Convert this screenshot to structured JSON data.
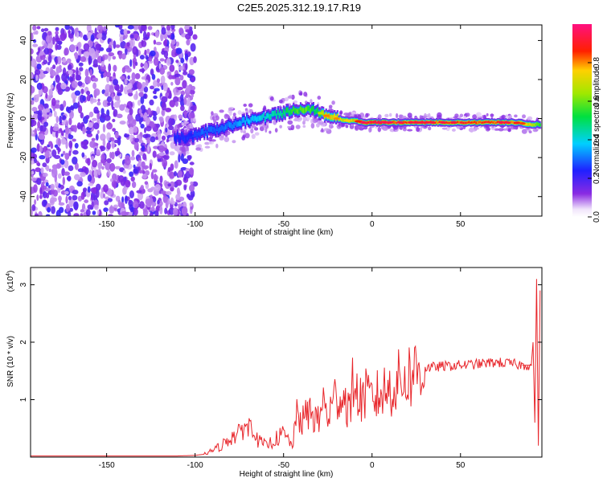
{
  "title": "C2E5.2025.312.19.17.R19",
  "colors": {
    "snr_line": "#e8262b",
    "axis": "#000000",
    "background": "#ffffff"
  },
  "chart_data": [
    {
      "type": "heatmap",
      "xlabel": "Height of straight line (km)",
      "ylabel": "Frequency (Hz)",
      "xlim": [
        -193,
        96
      ],
      "ylim": [
        -50,
        48
      ],
      "xticks": [
        -150,
        -100,
        -50,
        0,
        50
      ],
      "yticks": [
        -40,
        -20,
        0,
        20,
        40
      ],
      "colorbar": {
        "label": "Normalized spectral amplitude",
        "range": [
          0,
          1
        ],
        "ticks": [
          "0.0",
          "0.2",
          "0.4",
          "0.6",
          "0.8"
        ],
        "tick_values": [
          0,
          0.2,
          0.4,
          0.6,
          0.8
        ],
        "colormap": "rainbow (white-violet-blue-cyan-green-yellow-red-magenta)"
      },
      "noise_region_x": [
        -193,
        -100
      ],
      "ridge": {
        "x": [
          -105,
          -95,
          -85,
          -75,
          -65,
          -55,
          -45,
          -38,
          -32,
          -25,
          -20,
          -15,
          -10,
          -5,
          0,
          10,
          20,
          40,
          60,
          80,
          90,
          95
        ],
        "freq": [
          -10,
          -7,
          -5,
          -2,
          0,
          2,
          4,
          5,
          4,
          1,
          0,
          -1,
          -1,
          -2,
          -2,
          -2,
          -2,
          -2,
          -2,
          -2,
          -3,
          -3
        ],
        "amplitude": [
          0.25,
          0.3,
          0.3,
          0.35,
          0.4,
          0.45,
          0.55,
          0.6,
          0.5,
          0.8,
          0.75,
          0.7,
          0.75,
          0.9,
          0.95,
          0.92,
          0.88,
          0.88,
          0.88,
          0.88,
          0.7,
          0.55
        ]
      }
    },
    {
      "type": "line",
      "xlabel": "Height of straight line (km)",
      "ylabel": "SNR (10 * v/v)",
      "y_scale_label": "(x10",
      "y_scale_exponent": "4",
      "y_scale_close": ")",
      "xlim": [
        -193,
        96
      ],
      "ylim": [
        0,
        3.3
      ],
      "xticks": [
        -150,
        -100,
        -50,
        0,
        50
      ],
      "yticks": [
        1,
        2,
        3
      ],
      "series": [
        {
          "name": "SNR",
          "x": [
            -193,
            -110,
            -100,
            -95,
            -90,
            -85,
            -80,
            -75,
            -72,
            -70,
            -68,
            -65,
            -60,
            -55,
            -50,
            -45,
            -42,
            -40,
            -35,
            -30,
            -28,
            -25,
            -20,
            -15,
            -12,
            -10,
            -8,
            -5,
            0,
            5,
            10,
            15,
            20,
            25,
            30,
            40,
            50,
            60,
            70,
            80,
            85,
            88,
            90,
            91,
            92,
            93,
            94,
            95
          ],
          "values": [
            0.02,
            0.02,
            0.03,
            0.05,
            0.12,
            0.2,
            0.35,
            0.4,
            0.6,
            0.45,
            0.7,
            0.3,
            0.2,
            0.3,
            0.4,
            0.2,
            0.8,
            0.6,
            0.8,
            0.6,
            1.0,
            0.7,
            1.1,
            1.0,
            0.8,
            1.6,
            0.9,
            1.1,
            1.0,
            1.1,
            1.2,
            1.3,
            1.4,
            1.5,
            1.55,
            1.58,
            1.6,
            1.62,
            1.65,
            1.62,
            1.6,
            1.6,
            1.6,
            2.0,
            0.6,
            3.1,
            0.2,
            2.9
          ]
        }
      ]
    }
  ]
}
